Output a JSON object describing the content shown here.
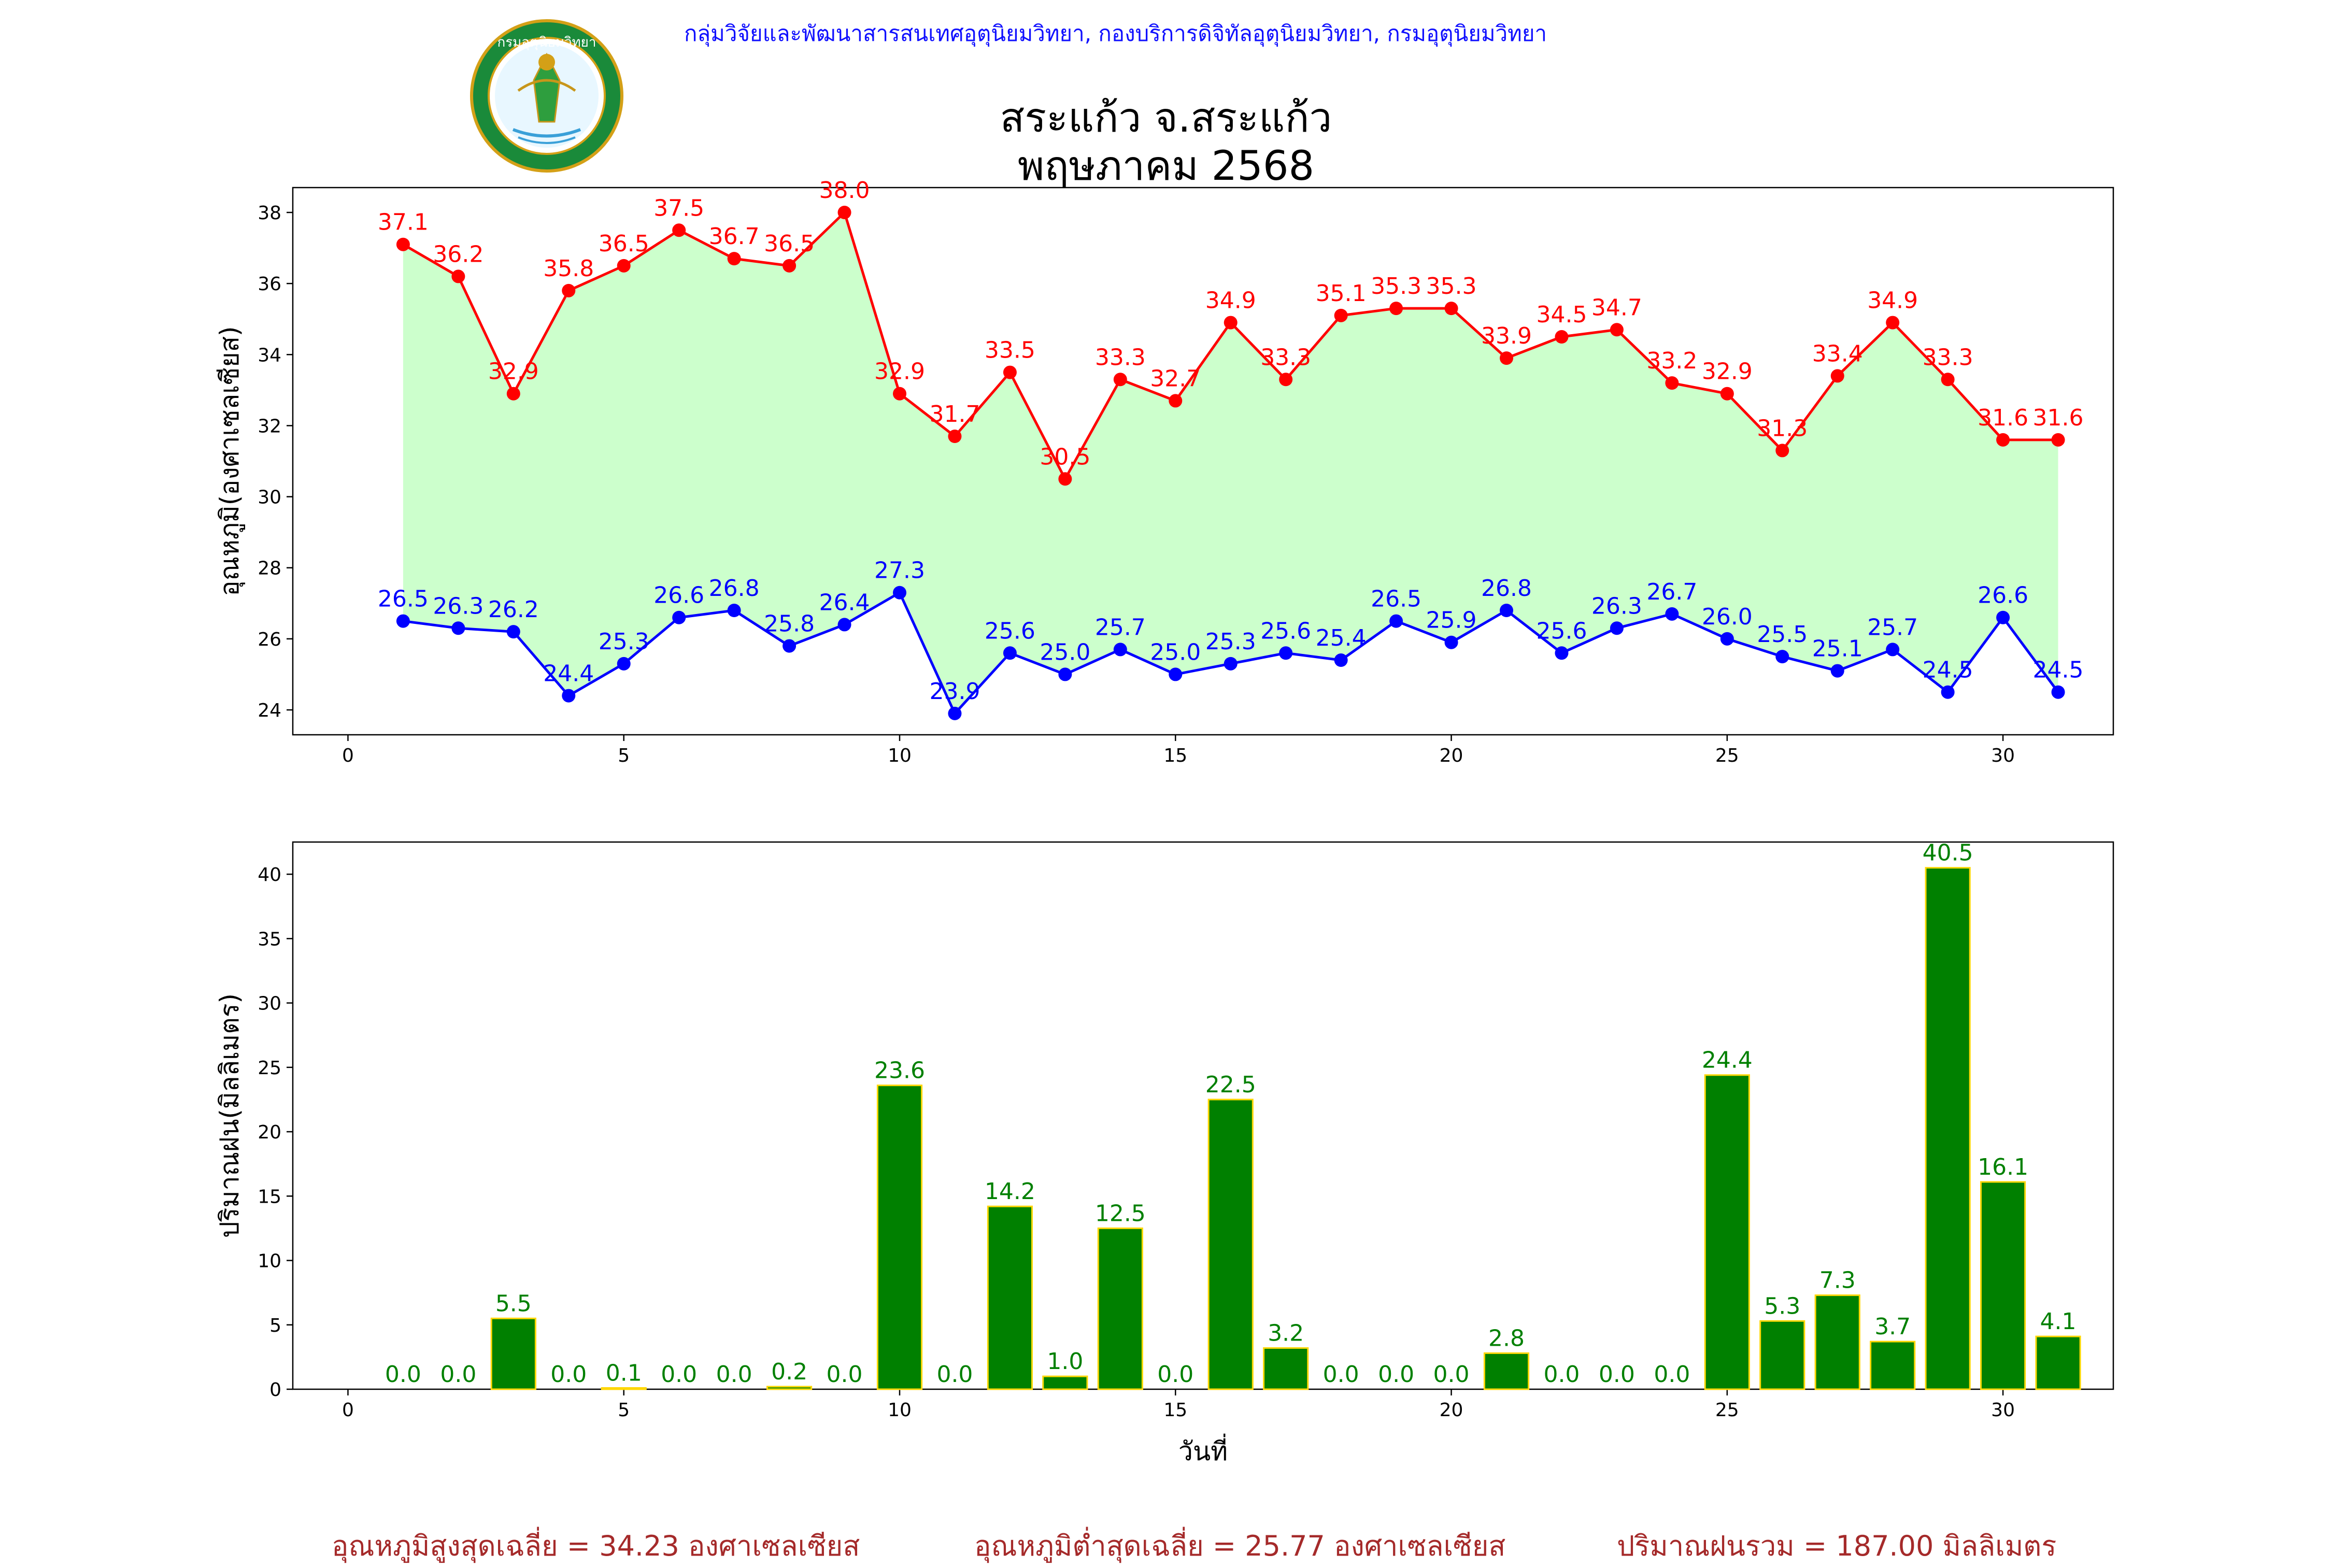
{
  "header": {
    "org_text": "กลุ่มวิจัยและพัฒนาสารสนเทศอุตุนิยมวิทยา, กองบริการดิจิทัลอุตุนิยมวิทยา, กรมอุตุนิยมวิทยา",
    "logo_text": "กรมอุตุนิยมวิทยา",
    "logo_icon": "meteorological-department-seal"
  },
  "title": {
    "line1": "สระแก้ว จ.สระแก้ว",
    "line2": "พฤษภาคม 2568"
  },
  "colors": {
    "max_temp": "#ff0000",
    "min_temp": "#0000ff",
    "fill": "#ccffcc",
    "rain_bar": "#008000",
    "rain_edge": "#ffd700",
    "rain_label": "#008000",
    "footer": "#a52a2a"
  },
  "chart_data": [
    {
      "type": "line",
      "ylabel": "อุณหภูมิ(องศาเซลเซียส)",
      "xlim": [
        -1,
        32
      ],
      "ylim": [
        23.3,
        38.7
      ],
      "xticks": [
        0,
        5,
        10,
        15,
        20,
        25,
        30
      ],
      "yticks": [
        24,
        26,
        28,
        30,
        32,
        34,
        36,
        38
      ],
      "x": [
        1,
        2,
        3,
        4,
        5,
        6,
        7,
        8,
        9,
        10,
        11,
        12,
        13,
        14,
        15,
        16,
        17,
        18,
        19,
        20,
        21,
        22,
        23,
        24,
        25,
        26,
        27,
        28,
        29,
        30,
        31
      ],
      "series": [
        {
          "values": [
            37.1,
            36.2,
            32.9,
            35.8,
            36.5,
            37.5,
            36.7,
            36.5,
            38.0,
            32.9,
            31.7,
            33.5,
            30.5,
            33.3,
            32.7,
            34.9,
            33.3,
            35.1,
            35.3,
            35.3,
            33.9,
            34.5,
            34.7,
            33.2,
            32.9,
            31.3,
            33.4,
            34.9,
            33.3,
            31.6,
            31.6
          ]
        },
        {
          "values": [
            26.5,
            26.3,
            26.2,
            24.4,
            25.3,
            26.6,
            26.8,
            25.8,
            26.4,
            27.3,
            23.9,
            25.6,
            25.0,
            25.7,
            25.0,
            25.3,
            25.6,
            25.4,
            26.5,
            25.9,
            26.8,
            25.6,
            26.3,
            26.7,
            26.0,
            25.5,
            25.1,
            25.7,
            24.5,
            26.6,
            24.5
          ]
        }
      ]
    },
    {
      "type": "bar",
      "ylabel": "ปริมาณฝน(มิลลิเมตร)",
      "xlabel": "วันที่",
      "xlim": [
        -1,
        32
      ],
      "ylim": [
        0,
        42.5
      ],
      "xticks": [
        0,
        5,
        10,
        15,
        20,
        25,
        30
      ],
      "yticks": [
        0,
        5,
        10,
        15,
        20,
        25,
        30,
        35,
        40
      ],
      "x": [
        1,
        2,
        3,
        4,
        5,
        6,
        7,
        8,
        9,
        10,
        11,
        12,
        13,
        14,
        15,
        16,
        17,
        18,
        19,
        20,
        21,
        22,
        23,
        24,
        25,
        26,
        27,
        28,
        29,
        30,
        31
      ],
      "values": [
        0.0,
        0.0,
        5.5,
        0.0,
        0.1,
        0.0,
        0.0,
        0.2,
        0.0,
        23.6,
        0.0,
        14.2,
        1.0,
        12.5,
        0.0,
        22.5,
        3.2,
        0.0,
        0.0,
        0.0,
        2.8,
        0.0,
        0.0,
        0.0,
        24.4,
        5.3,
        7.3,
        3.7,
        40.5,
        16.1,
        4.1
      ]
    }
  ],
  "footer": {
    "avg_max": "อุณหภูมิสูงสุดเฉลี่ย = 34.23 องศาเซลเซียส",
    "avg_min": "อุณหภูมิต่ำสุดเฉลี่ย = 25.77 องศาเซลเซียส",
    "total_rain": "ปริมาณฝนรวม = 187.00 มิลลิเมตร"
  }
}
